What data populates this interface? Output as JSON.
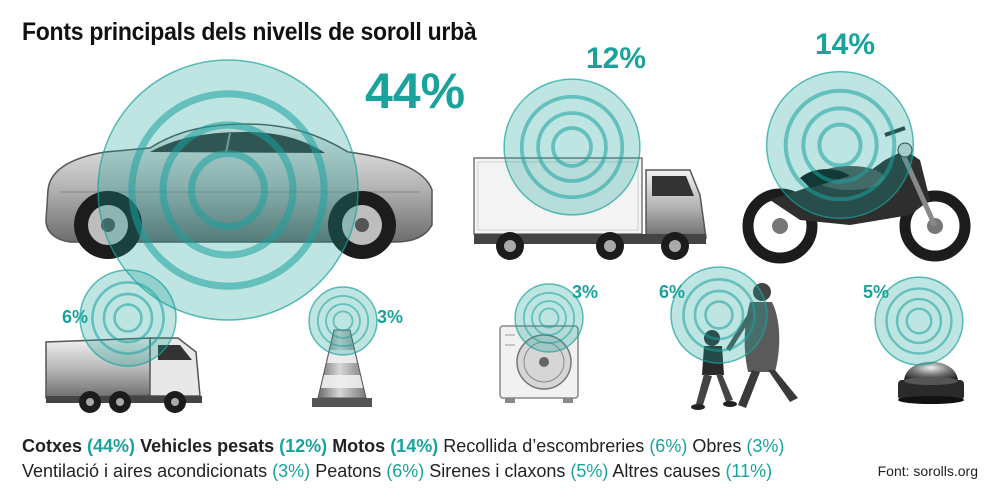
{
  "title": "Fonts principals dels nivells de soroll urbà",
  "source": "Font: sorolls.org",
  "accent_color": "#1aa39c",
  "chart_data": {
    "type": "bubble-infographic",
    "title": "Fonts principals dels nivells de soroll urbà",
    "unit": "%",
    "categories": [
      {
        "label": "Cotxes",
        "value": 44,
        "value_label": "44%",
        "icon": "car-icon",
        "highlight": true
      },
      {
        "label": "Vehicles pesats",
        "value": 12,
        "value_label": "12%",
        "icon": "truck-icon",
        "highlight": true
      },
      {
        "label": "Motos",
        "value": 14,
        "value_label": "14%",
        "icon": "motorcycle-icon",
        "highlight": true
      },
      {
        "label": "Recollida d’escombreries",
        "value": 6,
        "value_label": "6%",
        "icon": "garbage-truck-icon",
        "highlight": false
      },
      {
        "label": "Obres",
        "value": 3,
        "value_label": "3%",
        "icon": "traffic-cone-icon",
        "highlight": false
      },
      {
        "label": "Ventilació i aires acondicionats",
        "value": 3,
        "value_label": "3%",
        "icon": "air-conditioner-icon",
        "highlight": false
      },
      {
        "label": "Peatons",
        "value": 6,
        "value_label": "6%",
        "icon": "pedestrians-icon",
        "highlight": false
      },
      {
        "label": "Sirenes i claxons",
        "value": 5,
        "value_label": "5%",
        "icon": "siren-icon",
        "highlight": false
      },
      {
        "label": "Altres causes",
        "value": 11,
        "value_label": "11%",
        "icon": null,
        "highlight": false
      }
    ]
  }
}
